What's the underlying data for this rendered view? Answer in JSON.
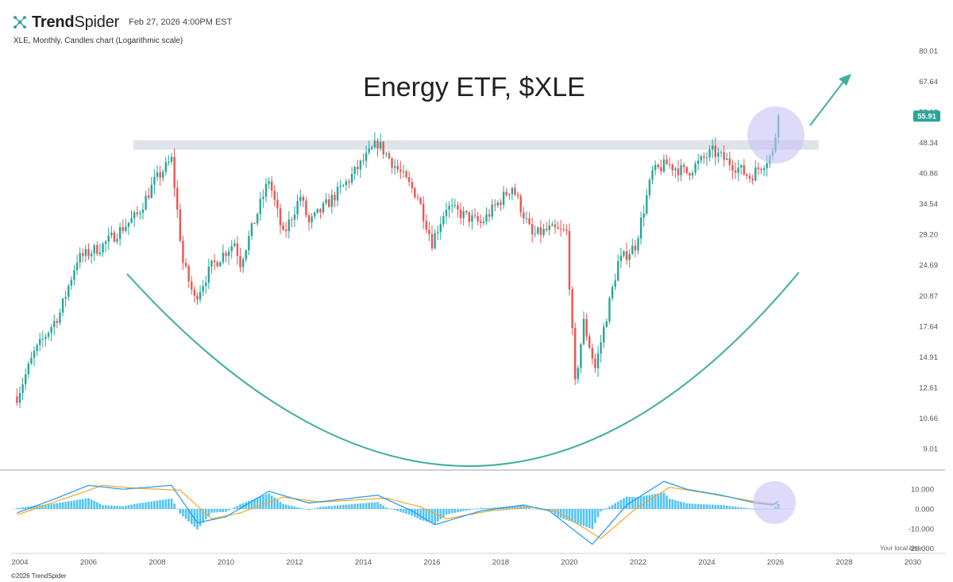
{
  "header": {
    "brand_bold": "Trend",
    "brand_regular": "Spider",
    "datetime": "Feb 27, 2026 4:00PM EST",
    "subtitle": "XLE, Monthly, Candles chart (Logarithmic scale)"
  },
  "footer": {
    "copyright": "©2026 TrendSpider",
    "local_time": "Your local time"
  },
  "colors": {
    "up": "#26a69a",
    "down": "#ef5350",
    "annotation": "#3fae9f",
    "resistance_band": "#dfe3ea",
    "highlight": "#c8c2f5",
    "macd_line": "#2196f3",
    "signal_line": "#f5a623",
    "histogram": "#4fc3f7"
  },
  "chart_data": [
    {
      "type": "candlestick",
      "title": "Energy ETF, $XLE",
      "scale": "log",
      "y_ticks": [
        9.01,
        10.66,
        12.61,
        14.91,
        17.64,
        20.87,
        24.69,
        29.2,
        34.54,
        40.86,
        48.34,
        57.18,
        67.64,
        80.01
      ],
      "y_tick_labels": [
        "9.01",
        "10.66",
        "12.61",
        "14.91",
        "17.64",
        "20.87",
        "24.69",
        "29.20",
        "34.54",
        "40.86",
        "48.34",
        "57.18",
        "67.64",
        "80.01"
      ],
      "x_ticks": [
        "2004",
        "2006",
        "2008",
        "2010",
        "2012",
        "2014",
        "2016",
        "2018",
        "2020",
        "2022",
        "2024",
        "2026",
        "2028",
        "2030"
      ],
      "last_price": 55.91,
      "last_price_label": "55.91",
      "path": [
        [
          "2003-12",
          12.0
        ],
        [
          "2004-06",
          15.2
        ],
        [
          "2005-03",
          19.0
        ],
        [
          "2005-09",
          25.5
        ],
        [
          "2006-06",
          27.5
        ],
        [
          "2007-06",
          32.5
        ],
        [
          "2007-12",
          39.0
        ],
        [
          "2008-06",
          44.0
        ],
        [
          "2008-10",
          25.0
        ],
        [
          "2009-02",
          20.5
        ],
        [
          "2009-08",
          24.5
        ],
        [
          "2010-04",
          28.0
        ],
        [
          "2010-06",
          25.0
        ],
        [
          "2011-04",
          39.5
        ],
        [
          "2011-09",
          29.0
        ],
        [
          "2012-03",
          36.0
        ],
        [
          "2012-06",
          31.0
        ],
        [
          "2013-06",
          38.0
        ],
        [
          "2014-06",
          48.3
        ],
        [
          "2015-08",
          36.0
        ],
        [
          "2016-01",
          28.0
        ],
        [
          "2016-06",
          34.0
        ],
        [
          "2017-06",
          31.0
        ],
        [
          "2018-05",
          38.0
        ],
        [
          "2018-12",
          29.0
        ],
        [
          "2019-06",
          30.0
        ],
        [
          "2019-12",
          29.5
        ],
        [
          "2020-03",
          12.8
        ],
        [
          "2020-06",
          18.0
        ],
        [
          "2020-10",
          14.0
        ],
        [
          "2021-06",
          25.0
        ],
        [
          "2021-12",
          27.5
        ],
        [
          "2022-06",
          41.0
        ],
        [
          "2022-11",
          43.0
        ],
        [
          "2023-06",
          41.0
        ],
        [
          "2024-03",
          46.0
        ],
        [
          "2024-12",
          42.0
        ],
        [
          "2025-04",
          40.0
        ],
        [
          "2025-12",
          45.5
        ],
        [
          "2026-02",
          55.91
        ]
      ],
      "resistance_zone": [
        46.5,
        49.0
      ],
      "annotations": [
        "rounding-bottom arc",
        "breakout arrow",
        "highlight circle"
      ]
    },
    {
      "type": "macd",
      "y_ticks": [
        10.0,
        0.0,
        -10.0,
        -20.0
      ],
      "y_tick_labels": [
        "10.000",
        "0.000",
        "-10.000",
        "-20.000"
      ],
      "x_ticks": [
        "2004",
        "2006",
        "2008",
        "2010",
        "2012",
        "2014",
        "2016",
        "2018",
        "2020",
        "2022",
        "2024",
        "2026",
        "2028",
        "2030"
      ],
      "macd_path": [
        [
          "2003-12",
          -2.0
        ],
        [
          "2005-01",
          5.0
        ],
        [
          "2006-01",
          12.0
        ],
        [
          "2007-01",
          10.0
        ],
        [
          "2008-06",
          12.0
        ],
        [
          "2009-03",
          -7.0
        ],
        [
          "2010-01",
          -4.0
        ],
        [
          "2011-04",
          9.0
        ],
        [
          "2012-06",
          3.0
        ],
        [
          "2014-06",
          7.0
        ],
        [
          "2015-06",
          -1.0
        ],
        [
          "2016-02",
          -8.0
        ],
        [
          "2017-06",
          -1.0
        ],
        [
          "2018-09",
          2.0
        ],
        [
          "2019-06",
          -1.0
        ],
        [
          "2020-09",
          -18.0
        ],
        [
          "2021-09",
          2.0
        ],
        [
          "2022-10",
          14.0
        ],
        [
          "2023-06",
          10.0
        ],
        [
          "2024-06",
          7.0
        ],
        [
          "2025-06",
          3.0
        ],
        [
          "2025-12",
          2.0
        ],
        [
          "2026-02",
          4.0
        ]
      ],
      "signal_path": [
        [
          "2003-12",
          -3.0
        ],
        [
          "2005-06",
          6.0
        ],
        [
          "2006-06",
          12.0
        ],
        [
          "2007-06",
          10.5
        ],
        [
          "2008-09",
          9.5
        ],
        [
          "2009-08",
          -5.0
        ],
        [
          "2010-06",
          -2.0
        ],
        [
          "2011-09",
          6.0
        ],
        [
          "2012-10",
          3.5
        ],
        [
          "2014-09",
          5.5
        ],
        [
          "2015-09",
          1.0
        ],
        [
          "2016-06",
          -5.0
        ],
        [
          "2017-09",
          -1.0
        ],
        [
          "2018-12",
          1.0
        ],
        [
          "2019-09",
          -1.5
        ],
        [
          "2020-12",
          -15.0
        ],
        [
          "2021-12",
          0.0
        ],
        [
          "2022-12",
          11.0
        ],
        [
          "2023-09",
          9.0
        ],
        [
          "2024-09",
          6.0
        ],
        [
          "2025-09",
          3.0
        ],
        [
          "2026-02",
          2.5
        ]
      ],
      "histogram_scale": 0.5
    }
  ]
}
